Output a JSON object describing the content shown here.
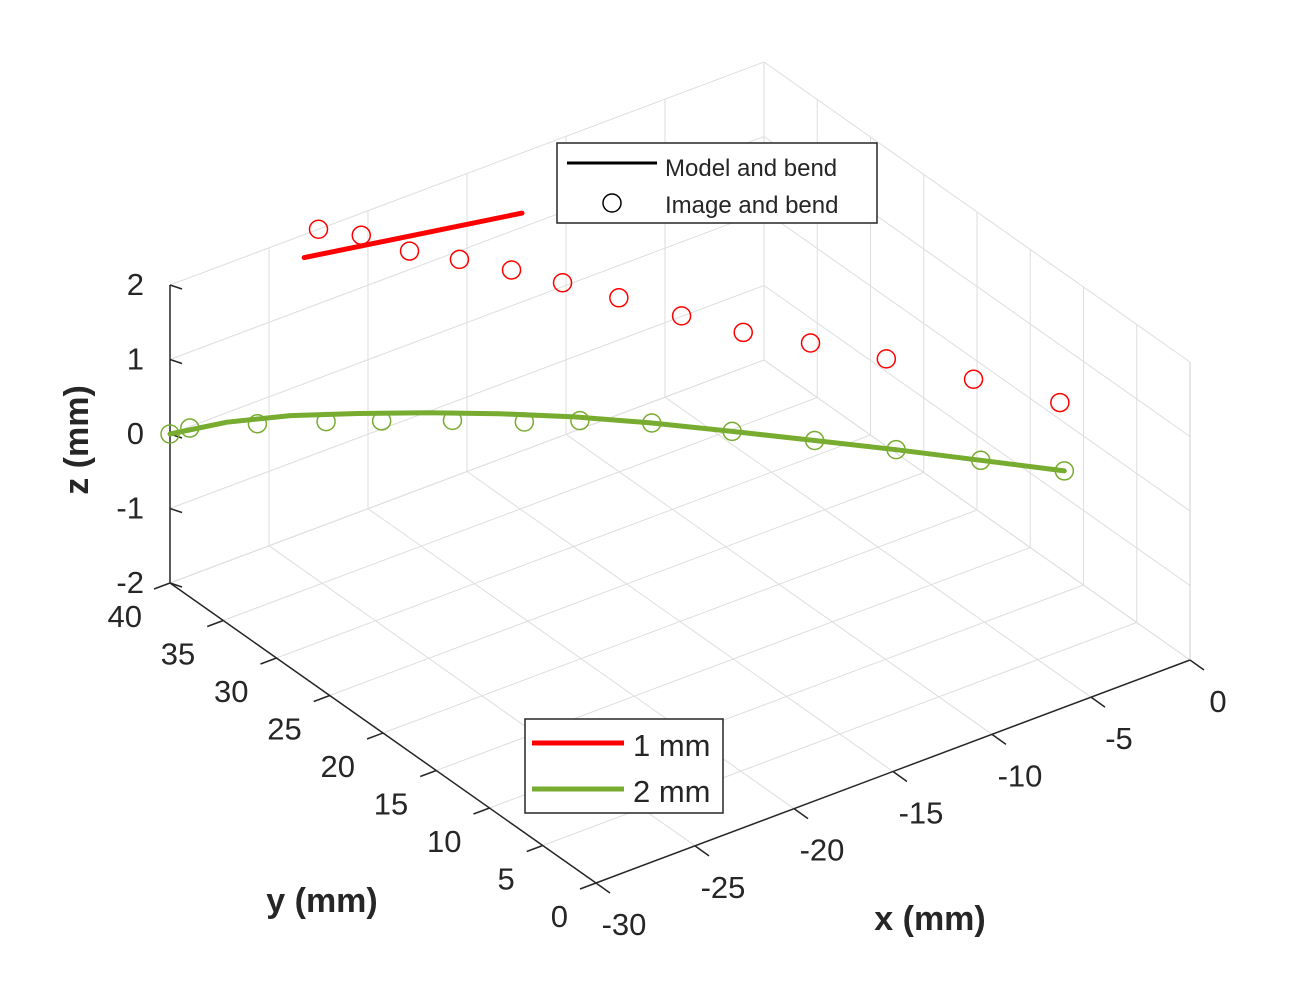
{
  "chart_data": {
    "type": "line3d",
    "title": "",
    "xlabel": "x (mm)",
    "ylabel": "y (mm)",
    "zlabel": "z (mm)",
    "xlim": [
      -30,
      0
    ],
    "ylim": [
      0,
      40
    ],
    "zlim": [
      -2,
      2
    ],
    "x_ticks": [
      "-30",
      "-25",
      "-20",
      "-15",
      "-10",
      "-5",
      "0"
    ],
    "y_ticks": [
      "0",
      "5",
      "10",
      "15",
      "20",
      "25",
      "30",
      "35",
      "40"
    ],
    "z_ticks": [
      "-2",
      "-1",
      "0",
      "1",
      "2"
    ],
    "grid": true,
    "legend_style": {
      "placement": "top-center",
      "entries": [
        {
          "label": "Model and bend",
          "marker": "line",
          "color": "#000000"
        },
        {
          "label": "Image and bend",
          "marker": "circle",
          "color": "#000000"
        }
      ]
    },
    "legend_series": {
      "placement": "bottom-center",
      "entries": [
        {
          "label": "1 mm",
          "color": "#ff0000"
        },
        {
          "label": "2 mm",
          "color": "#77ac30"
        }
      ]
    },
    "series": [
      {
        "name": "1 mm",
        "color": "#ff0000",
        "model": {
          "x": [
            -24.3,
            -13.3
          ],
          "y": [
            38.0,
            38.0
          ],
          "z": [
            2.0,
            1.5
          ]
        },
        "image": {
          "x": [
            -22.5,
            -21.2,
            -20.0,
            -18.5,
            -17.0,
            -15.5,
            -14.0,
            -12.5,
            -11.0,
            -9.0,
            -7.0,
            -4.8,
            -2.7
          ],
          "y": [
            40.0,
            38.4,
            36.1,
            34.2,
            32.1,
            30.1,
            27.6,
            24.5,
            21.5,
            18.9,
            15.5,
            11.4,
            7.2
          ],
          "z": [
            2.0,
            1.95,
            1.85,
            1.78,
            1.7,
            1.58,
            1.48,
            1.4,
            1.33,
            1.25,
            1.18,
            1.1,
            1.0
          ]
        }
      },
      {
        "name": "2 mm",
        "color": "#77ac30",
        "model": {
          "x": [
            -30.0,
            -27.5,
            -25.0,
            -22.5,
            -20.0,
            -17.5,
            -15.0,
            -12.5,
            -10.0,
            -7.5,
            -5.0,
            -2.5,
            0.0
          ],
          "y": [
            40.0,
            39.3,
            38.0,
            36.3,
            34.4,
            32.3,
            29.9,
            27.3,
            24.4,
            21.3,
            18.3,
            15.0,
            11.8
          ],
          "z": [
            0.0,
            -0.02,
            -0.05,
            -0.1,
            -0.15,
            -0.2,
            -0.25,
            -0.32,
            -0.39,
            -0.45,
            -0.52,
            -0.58,
            -0.65
          ]
        },
        "image": {
          "x": [
            -30.0,
            -29.0,
            -26.5,
            -24.0,
            -22.0,
            -19.5,
            -17.0,
            -15.0,
            -12.5,
            -10.0,
            -7.5,
            -5.0,
            -2.5,
            0.0
          ],
          "y": [
            40.0,
            40.0,
            38.3,
            36.5,
            35.0,
            33.0,
            30.9,
            29.4,
            27.3,
            24.4,
            21.3,
            18.3,
            15.0,
            11.8
          ],
          "z": [
            0.0,
            -0.02,
            -0.04,
            -0.08,
            -0.12,
            -0.16,
            -0.22,
            -0.25,
            -0.32,
            -0.39,
            -0.45,
            -0.52,
            -0.58,
            -0.65
          ]
        }
      }
    ]
  }
}
